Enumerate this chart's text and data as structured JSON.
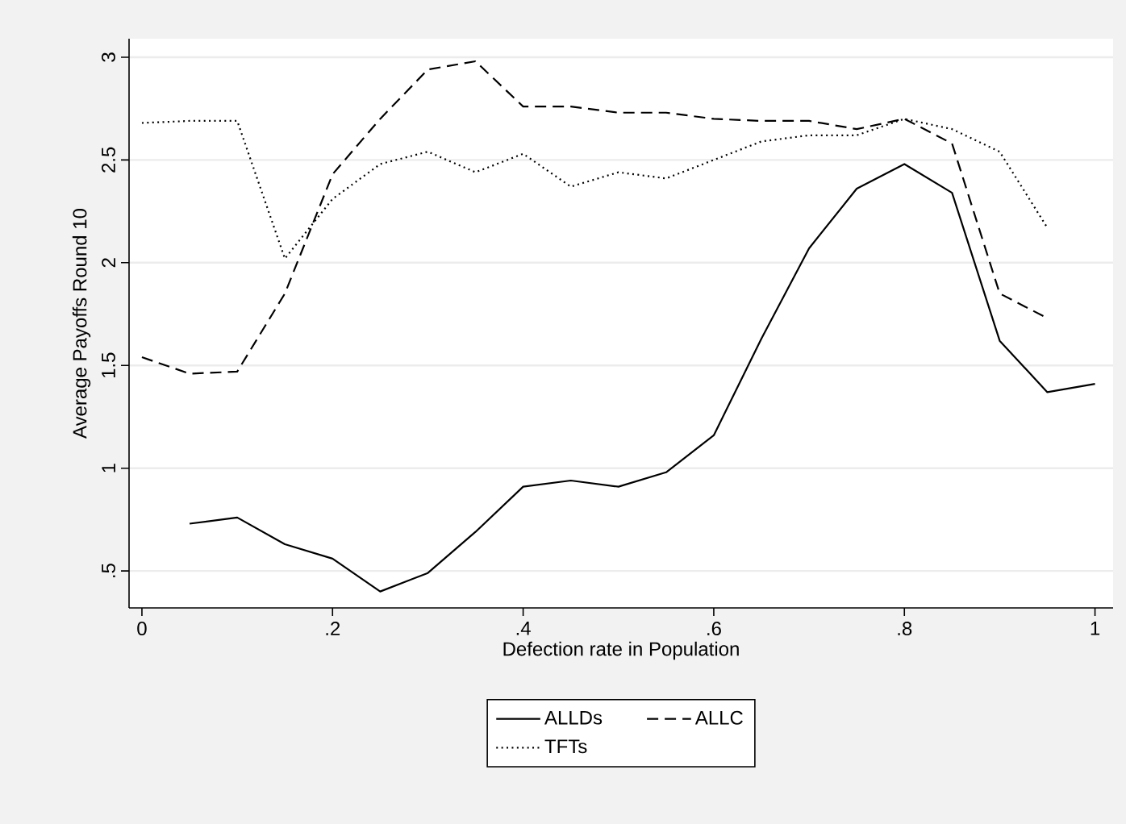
{
  "chart_data": {
    "type": "line",
    "xlabel": "Defection rate in Population",
    "ylabel": "Average Payoffs Round 10",
    "x": [
      0,
      0.05,
      0.1,
      0.15,
      0.2,
      0.25,
      0.3,
      0.35,
      0.4,
      0.45,
      0.5,
      0.55,
      0.6,
      0.65,
      0.7,
      0.75,
      0.8,
      0.85,
      0.9,
      0.95,
      1
    ],
    "series": [
      {
        "name": "ALLDs",
        "color": "#000000",
        "line_style": "solid",
        "values": [
          null,
          0.73,
          0.76,
          0.63,
          0.56,
          0.4,
          0.49,
          0.69,
          0.91,
          0.94,
          0.91,
          0.98,
          1.16,
          1.63,
          2.07,
          2.36,
          2.48,
          2.34,
          1.62,
          1.37,
          1.41
        ]
      },
      {
        "name": "ALLC",
        "color": "#000000",
        "line_style": "dashed",
        "values": [
          1.54,
          1.46,
          1.47,
          1.85,
          2.43,
          2.7,
          2.94,
          2.98,
          2.76,
          2.76,
          2.73,
          2.73,
          2.7,
          2.69,
          2.69,
          2.65,
          2.7,
          2.58,
          1.85,
          1.73,
          null
        ]
      },
      {
        "name": "TFTs",
        "color": "#000000",
        "line_style": "dotted",
        "values": [
          2.68,
          2.69,
          2.69,
          2.02,
          2.31,
          2.48,
          2.54,
          2.44,
          2.53,
          2.37,
          2.44,
          2.41,
          2.5,
          2.59,
          2.62,
          2.62,
          2.7,
          2.65,
          2.54,
          2.17,
          null
        ]
      }
    ],
    "xlim": [
      -0.0135,
      1.019
    ],
    "ylim": [
      0.32,
      3.09
    ],
    "xticks": [
      0,
      {
        "value": 0.2,
        "label": ".2"
      },
      {
        "value": 0.4,
        "label": ".4"
      },
      {
        "value": 0.6,
        "label": ".6"
      },
      {
        "value": 0.8,
        "label": ".8"
      },
      1
    ],
    "yticks": [
      {
        "value": 0.5,
        "label": ".5"
      },
      1,
      1.5,
      2,
      2.5,
      3
    ],
    "grid": "y",
    "legend": "bottom",
    "marker": "none"
  }
}
